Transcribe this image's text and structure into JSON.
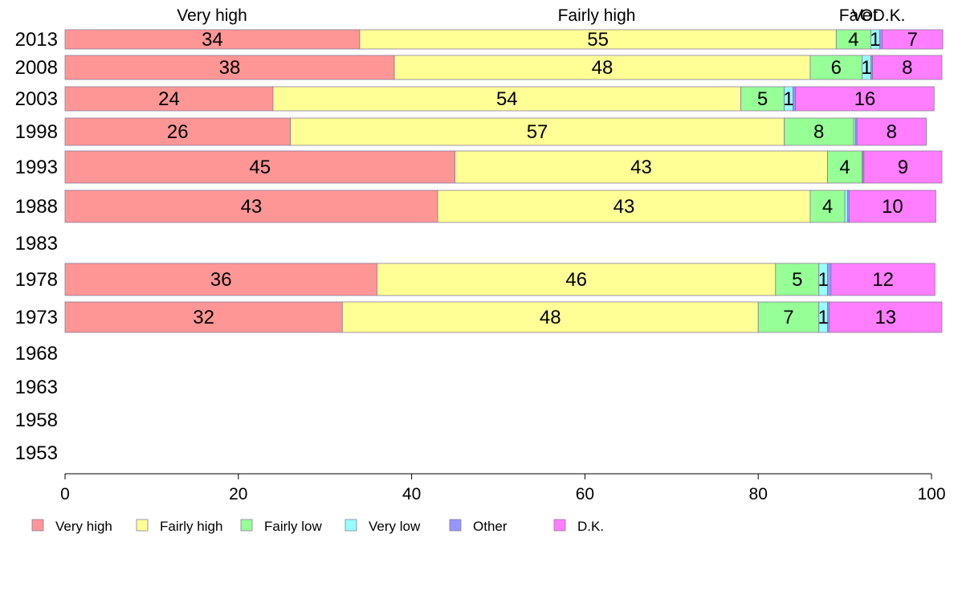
{
  "chart_data": {
    "type": "bar",
    "orientation": "horizontal",
    "stacked": true,
    "title": "",
    "xlabel": "",
    "ylabel": "",
    "xlim": [
      0,
      100
    ],
    "xticks": [
      "0",
      "20",
      "40",
      "60",
      "80",
      "100"
    ],
    "grid": false,
    "legend_position": "bottom",
    "categories": [
      "2013",
      "2008",
      "2003",
      "1998",
      "1993",
      "1988",
      "1983",
      "1978",
      "1973",
      "1968",
      "1963",
      "1958",
      "1953"
    ],
    "series": [
      {
        "name": "Very high",
        "color": "#ff9696",
        "values": [
          34,
          38,
          24,
          26,
          45,
          43,
          null,
          36,
          32,
          null,
          null,
          null,
          null
        ]
      },
      {
        "name": "Fairly high",
        "color": "#ffff96",
        "values": [
          55,
          48,
          54,
          57,
          43,
          43,
          null,
          46,
          48,
          null,
          null,
          null,
          null
        ]
      },
      {
        "name": "Fairly low",
        "color": "#96ff96",
        "values": [
          4,
          6,
          5,
          8,
          4,
          4,
          null,
          5,
          7,
          null,
          null,
          null,
          null
        ]
      },
      {
        "name": "Very low",
        "color": "#96ffff",
        "values": [
          1,
          1,
          1,
          0.2,
          0.1,
          0.3,
          null,
          1,
          1,
          null,
          null,
          null,
          null
        ]
      },
      {
        "name": "Other",
        "color": "#9696ff",
        "values": [
          0.3,
          0.2,
          0.3,
          0.2,
          0.1,
          0.2,
          null,
          0.4,
          0.2,
          null,
          null,
          null,
          null
        ]
      },
      {
        "name": "D.K.",
        "color": "#ff7dff",
        "values": [
          7,
          8,
          16,
          8,
          9,
          10,
          null,
          12,
          13,
          null,
          null,
          null,
          null
        ]
      }
    ],
    "data_labels": [
      [
        "34",
        "55",
        "4",
        "1",
        "",
        "7"
      ],
      [
        "38",
        "48",
        "6",
        "1",
        "",
        "8"
      ],
      [
        "24",
        "54",
        "5",
        "1",
        "",
        "16"
      ],
      [
        "26",
        "57",
        "8",
        "",
        "",
        "8"
      ],
      [
        "45",
        "43",
        "4",
        "",
        "",
        "9"
      ],
      [
        "43",
        "43",
        "4",
        "",
        "",
        "10"
      ],
      [],
      [
        "36",
        "46",
        "5",
        "1",
        "",
        "12"
      ],
      [
        "32",
        "48",
        "7",
        "1",
        "",
        "13"
      ],
      [],
      [],
      [],
      []
    ],
    "top_labels": [
      "Very high",
      "Fairly high",
      "Fa",
      "Ve",
      "Ot",
      "D.K."
    ]
  }
}
